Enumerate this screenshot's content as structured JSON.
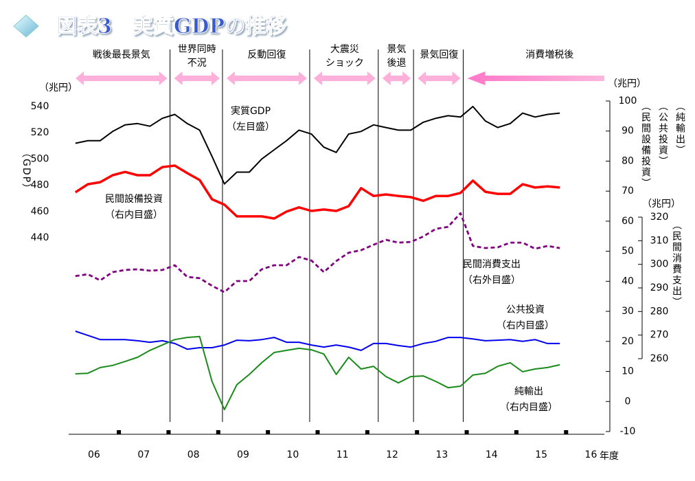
{
  "chart_data": {
    "type": "line",
    "title": "図表3　実質GDPの推移",
    "x_label": "年度",
    "x": [
      5.625,
      5.875,
      6.125,
      6.375,
      6.625,
      6.875,
      7.125,
      7.375,
      7.625,
      7.875,
      8.125,
      8.375,
      8.625,
      8.875,
      9.125,
      9.375,
      9.625,
      9.875,
      10.125,
      10.375,
      10.625,
      10.875,
      11.125,
      11.375,
      11.625,
      11.875,
      12.125,
      12.375,
      12.625,
      12.875,
      13.125,
      13.375,
      13.625,
      13.875,
      14.125,
      14.375,
      14.625,
      14.875,
      15.125,
      15.375
    ],
    "xlim": [
      5.49,
      16.27
    ],
    "xticks": [
      {
        "value": 6,
        "label": "06"
      },
      {
        "value": 7,
        "label": "07"
      },
      {
        "value": 8,
        "label": "08"
      },
      {
        "value": 9,
        "label": "09"
      },
      {
        "value": 10,
        "label": "10"
      },
      {
        "value": 11,
        "label": "11"
      },
      {
        "value": 12,
        "label": "12"
      },
      {
        "value": 13,
        "label": "13"
      },
      {
        "value": 14,
        "label": "14"
      },
      {
        "value": 15,
        "label": "15"
      },
      {
        "value": 16,
        "label": "16"
      }
    ],
    "y_unit": "（兆円）",
    "y_label": "（GDP）",
    "ylim": [
      440,
      540
    ],
    "yticks": [
      440,
      460,
      480,
      500,
      520,
      540
    ],
    "y2_unit": "（兆円）",
    "y2_labels": [
      "（民間設備投資）",
      "（公共投資）",
      "（純輸出）"
    ],
    "y2lim": [
      -10,
      100
    ],
    "y2ticks": [
      -10,
      0,
      10,
      20,
      30,
      40,
      50,
      60,
      70,
      80,
      90,
      100
    ],
    "y3_unit": "（兆円）",
    "y3_label": "（民間消費支出）",
    "y3lim": [
      260,
      320
    ],
    "y3ticks": [
      260,
      270,
      280,
      290,
      300,
      310,
      320
    ],
    "period_boundaries": [
      7.53,
      8.585,
      10.34,
      11.72,
      12.43,
      13.43
    ],
    "periods": [
      {
        "label": [
          "戦後最長景気"
        ]
      },
      {
        "label": [
          "世界同時",
          "不況"
        ]
      },
      {
        "label": [
          "反動回復"
        ]
      },
      {
        "label": [
          "大震災",
          "ショック"
        ]
      },
      {
        "label": [
          "景気",
          "後退"
        ]
      },
      {
        "label": [
          "景気回復"
        ]
      },
      {
        "label": [
          "消費増税後"
        ]
      }
    ],
    "series": [
      {
        "name": "実質GDP",
        "scale_note": "（左目盛）",
        "axis": "y",
        "color": "#000000",
        "dash": false,
        "values": [
          512,
          514,
          514,
          521,
          526,
          527,
          525,
          531,
          534,
          527,
          522,
          502,
          481,
          490,
          490,
          500,
          507,
          514,
          522,
          519,
          509,
          505,
          519,
          521,
          526,
          524,
          522,
          522,
          528,
          531,
          533,
          532,
          540,
          529,
          524,
          527,
          535,
          532,
          534,
          535
        ]
      },
      {
        "name": "民間設備投資",
        "scale_note": "（右内目盛）",
        "axis": "y2",
        "color": "#ff0000",
        "dash": false,
        "values": [
          69.6,
          72.3,
          73,
          75.3,
          76.4,
          75.3,
          75.3,
          78,
          78.5,
          76,
          73.7,
          67.3,
          65.5,
          61.6,
          61.6,
          61.6,
          60.9,
          63.2,
          64.6,
          63.4,
          63.9,
          63.4,
          65,
          71,
          68.4,
          68.9,
          68.4,
          68,
          66.8,
          68.4,
          68.4,
          69.4,
          73.5,
          69.8,
          69.1,
          69.1,
          72.3,
          71.2,
          71.6,
          71.2
        ]
      },
      {
        "name": "民間消費支出",
        "scale_note": "（右外目盛）",
        "axis": "y3",
        "color": "#800080",
        "dash": true,
        "values": [
          295,
          295.8,
          293.2,
          296.7,
          297.6,
          297.9,
          297.3,
          297.6,
          299.6,
          294.7,
          294.1,
          290.9,
          288.2,
          292.9,
          292.9,
          297.9,
          299.6,
          299.6,
          303.1,
          301.6,
          296.7,
          301.4,
          304.9,
          306,
          308.3,
          310.4,
          309.2,
          309.5,
          311.8,
          315,
          315.9,
          321.7,
          307.8,
          306.9,
          307.2,
          309.2,
          309.2,
          306.6,
          307.8,
          306.9
        ]
      },
      {
        "name": "公共投資",
        "scale_note": "（右内目盛）",
        "axis": "y2",
        "color": "#0000ee",
        "dash": false,
        "values": [
          23.4,
          22,
          20.6,
          20.6,
          20.6,
          20.2,
          19.7,
          20.2,
          19.3,
          17.4,
          17.9,
          17.9,
          18.8,
          20.4,
          20.2,
          20.6,
          21.3,
          19.7,
          19.7,
          18.8,
          18.1,
          18.8,
          18.1,
          17,
          19.3,
          19.3,
          18.6,
          18.1,
          19.3,
          20,
          21.3,
          21.3,
          20.8,
          20.2,
          20.4,
          20.6,
          20,
          20.6,
          19.3,
          19.3
        ]
      },
      {
        "name": "純輸出",
        "scale_note": "（右内目盛）",
        "axis": "y2",
        "color": "#1a8a1a",
        "dash": false,
        "values": [
          9.2,
          9.4,
          11.3,
          12,
          13.3,
          14.7,
          17,
          18.8,
          20.6,
          21.3,
          21.6,
          6.7,
          -2.7,
          5.6,
          9,
          12.9,
          16.3,
          17,
          17.7,
          17.2,
          15.8,
          9,
          14.7,
          10.8,
          11.7,
          8.3,
          6.2,
          8.3,
          8.5,
          6.7,
          4.6,
          5.1,
          8.8,
          9.4,
          11.7,
          12.9,
          9.9,
          10.8,
          11.3,
          12.2
        ]
      }
    ]
  }
}
